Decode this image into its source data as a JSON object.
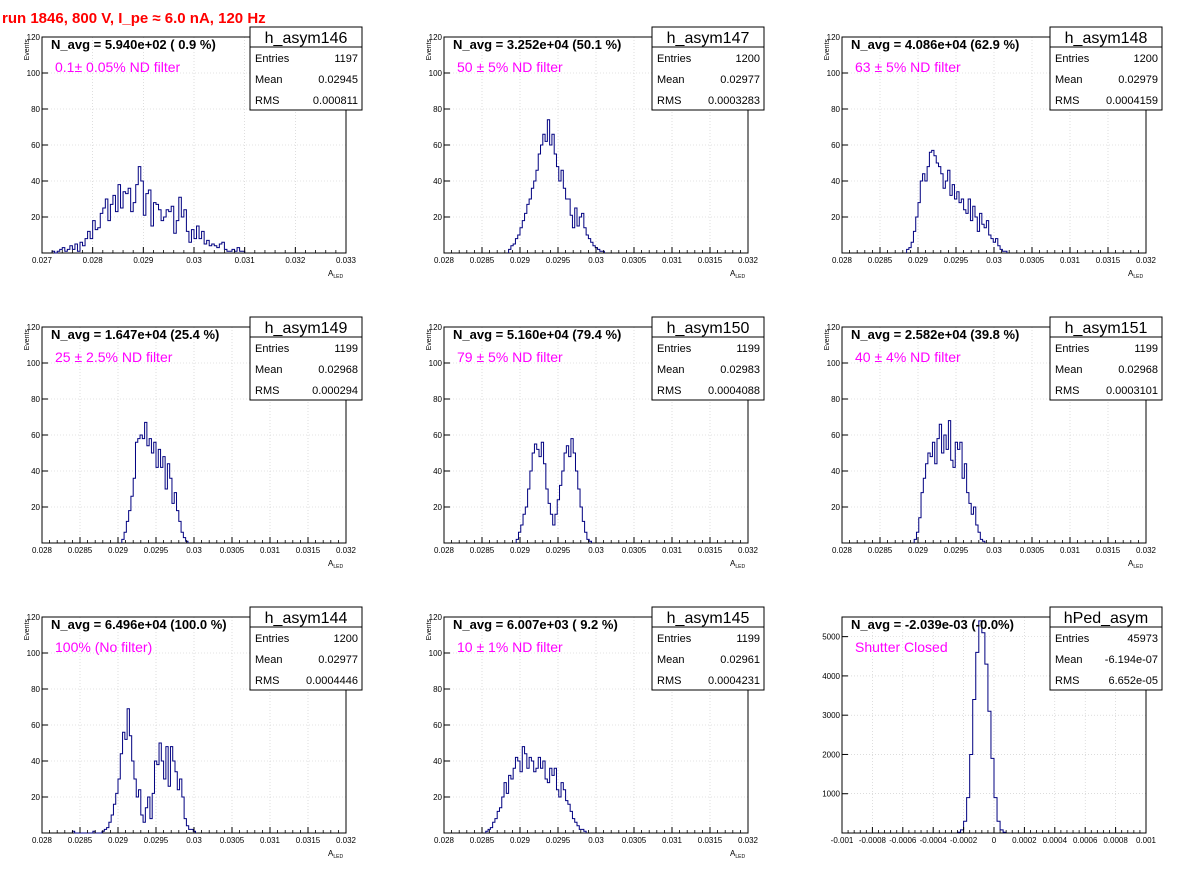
{
  "run_title": "run 1846,   800 V, I_pe ≈ 6.0 nA, 120 Hz",
  "colors": {
    "title": "#ff0000",
    "annotation": "#ff00ff",
    "histogram": "#000080",
    "grid": "#c8c8c8",
    "frame": "#000000"
  },
  "chart_data": [
    {
      "type": "histogram",
      "name": "h_asym146",
      "navg_text": "N_avg = 5.940e+02 ( 0.9 %)",
      "filter_text": "0.1± 0.05% ND filter",
      "stats": [
        [
          "Entries",
          "1197"
        ],
        [
          "Mean",
          "0.02945"
        ],
        [
          "RMS",
          "0.000811"
        ]
      ],
      "xlabel": "A",
      "xlabel_sub": "LED",
      "ylabel": "Events",
      "grid": true,
      "xlim": [
        0.027,
        0.033
      ],
      "ylim": [
        0,
        120
      ],
      "x_ticks": [
        0.027,
        0.028,
        0.029,
        0.03,
        0.031,
        0.032,
        0.033
      ],
      "x_tick_labels": [
        "0.027",
        "0.028",
        "0.029",
        "0.03",
        "0.031",
        "0.032",
        "0.033"
      ],
      "y_ticks": [
        20,
        40,
        60,
        80,
        100,
        120
      ],
      "y_tick_labels": [
        "20",
        "40",
        "60",
        "80",
        "100",
        "120"
      ],
      "bins": {
        "x0": 0.0272,
        "width": 5e-05,
        "counts": [
          1,
          0,
          1,
          2,
          3,
          1,
          2,
          4,
          2,
          5,
          1,
          6,
          4,
          8,
          12,
          8,
          18,
          13,
          14,
          22,
          25,
          30,
          18,
          27,
          32,
          23,
          38,
          25,
          34,
          33,
          36,
          23,
          28,
          38,
          48,
          40,
          21,
          33,
          35,
          15,
          28,
          27,
          24,
          18,
          20,
          24,
          23,
          26,
          11,
          18,
          31,
          20,
          24,
          12,
          6,
          13,
          8,
          15,
          8,
          12,
          5,
          7,
          4,
          5,
          4,
          3,
          5,
          6,
          2,
          1,
          1,
          2,
          1,
          3,
          1,
          1
        ]
      }
    },
    {
      "type": "histogram",
      "name": "h_asym147",
      "navg_text": "N_avg = 3.252e+04 (50.1 %)",
      "filter_text": "50 ± 5% ND filter",
      "stats": [
        [
          "Entries",
          "1200"
        ],
        [
          "Mean",
          "0.02977"
        ],
        [
          "RMS",
          "0.0003283"
        ]
      ],
      "xlabel": "A",
      "xlabel_sub": "LED",
      "ylabel": "Events",
      "grid": true,
      "xlim": [
        0.028,
        0.032
      ],
      "ylim": [
        0,
        120
      ],
      "x_ticks": [
        0.028,
        0.0285,
        0.029,
        0.0295,
        0.03,
        0.0305,
        0.031,
        0.0315,
        0.032
      ],
      "x_tick_labels": [
        "0.028",
        "0.0285",
        "0.029",
        "0.0295",
        "0.03",
        "0.0305",
        "0.031",
        "0.0315",
        "0.032"
      ],
      "y_ticks": [
        20,
        40,
        60,
        80,
        100,
        120
      ],
      "y_tick_labels": [
        "20",
        "40",
        "60",
        "80",
        "100",
        "120"
      ],
      "bins": {
        "x0": 0.02885,
        "width": 3e-05,
        "counts": [
          2,
          4,
          5,
          8,
          10,
          14,
          18,
          22,
          27,
          30,
          36,
          40,
          46,
          55,
          60,
          66,
          62,
          74,
          60,
          66,
          55,
          48,
          40,
          46,
          36,
          30,
          30,
          21,
          14,
          25,
          15,
          20,
          22,
          14,
          10,
          8,
          6,
          4,
          3,
          2,
          1,
          1
        ]
      }
    },
    {
      "type": "histogram",
      "name": "h_asym148",
      "navg_text": "N_avg = 4.086e+04 (62.9 %)",
      "filter_text": "63 ± 5% ND filter",
      "stats": [
        [
          "Entries",
          "1200"
        ],
        [
          "Mean",
          "0.02979"
        ],
        [
          "RMS",
          "0.0004159"
        ]
      ],
      "xlabel": "A",
      "xlabel_sub": "LED",
      "ylabel": "Events",
      "grid": true,
      "xlim": [
        0.028,
        0.032
      ],
      "ylim": [
        0,
        120
      ],
      "x_ticks": [
        0.028,
        0.0285,
        0.029,
        0.0295,
        0.03,
        0.0305,
        0.031,
        0.0315,
        0.032
      ],
      "x_tick_labels": [
        "0.028",
        "0.0285",
        "0.029",
        "0.0295",
        "0.03",
        "0.0305",
        "0.031",
        "0.0315",
        "0.032"
      ],
      "y_ticks": [
        20,
        40,
        60,
        80,
        100,
        120
      ],
      "y_tick_labels": [
        "20",
        "40",
        "60",
        "80",
        "100",
        "120"
      ],
      "bins": {
        "x0": 0.02885,
        "width": 3e-05,
        "counts": [
          2,
          3,
          6,
          12,
          20,
          28,
          40,
          44,
          40,
          48,
          56,
          57,
          54,
          50,
          48,
          44,
          36,
          40,
          46,
          32,
          38,
          30,
          34,
          28,
          30,
          24,
          22,
          30,
          18,
          26,
          20,
          12,
          22,
          16,
          14,
          18,
          10,
          8,
          6,
          8,
          4,
          2,
          1,
          1
        ]
      }
    },
    {
      "type": "histogram",
      "name": "h_asym149",
      "navg_text": "N_avg = 1.647e+04 (25.4 %)",
      "filter_text": "25 ± 2.5% ND filter",
      "stats": [
        [
          "Entries",
          "1199"
        ],
        [
          "Mean",
          "0.02968"
        ],
        [
          "RMS",
          "0.000294"
        ]
      ],
      "xlabel": "A",
      "xlabel_sub": "LED",
      "ylabel": "Events",
      "grid": true,
      "xlim": [
        0.028,
        0.032
      ],
      "ylim": [
        0,
        120
      ],
      "x_ticks": [
        0.028,
        0.0285,
        0.029,
        0.0295,
        0.03,
        0.0305,
        0.031,
        0.0315,
        0.032
      ],
      "x_tick_labels": [
        "0.028",
        "0.0285",
        "0.029",
        "0.0295",
        "0.03",
        "0.0305",
        "0.031",
        "0.0315",
        "0.032"
      ],
      "y_ticks": [
        20,
        40,
        60,
        80,
        100,
        120
      ],
      "y_tick_labels": [
        "20",
        "40",
        "60",
        "80",
        "100",
        "120"
      ],
      "bins": {
        "x0": 0.02905,
        "width": 3e-05,
        "counts": [
          2,
          6,
          12,
          18,
          26,
          36,
          56,
          58,
          60,
          58,
          67,
          54,
          58,
          50,
          56,
          42,
          52,
          42,
          48,
          30,
          44,
          36,
          22,
          28,
          18,
          12,
          6,
          3,
          1
        ]
      }
    },
    {
      "type": "histogram",
      "name": "h_asym150",
      "navg_text": "N_avg = 5.160e+04 (79.4 %)",
      "filter_text": "79 ± 5% ND filter",
      "stats": [
        [
          "Entries",
          "1199"
        ],
        [
          "Mean",
          "0.02983"
        ],
        [
          "RMS",
          "0.0004088"
        ]
      ],
      "xlabel": "A",
      "xlabel_sub": "LED",
      "ylabel": "Events",
      "grid": true,
      "xlim": [
        0.028,
        0.032
      ],
      "ylim": [
        0,
        120
      ],
      "x_ticks": [
        0.028,
        0.0285,
        0.029,
        0.0295,
        0.03,
        0.0305,
        0.031,
        0.0315,
        0.032
      ],
      "x_tick_labels": [
        "0.028",
        "0.0285",
        "0.029",
        "0.0295",
        "0.03",
        "0.0305",
        "0.031",
        "0.0315",
        "0.032"
      ],
      "y_ticks": [
        20,
        40,
        60,
        80,
        100,
        120
      ],
      "y_tick_labels": [
        "20",
        "40",
        "60",
        "80",
        "100",
        "120"
      ],
      "bins": {
        "x0": 0.02895,
        "width": 3e-05,
        "counts": [
          2,
          6,
          10,
          16,
          20,
          30,
          40,
          50,
          55,
          52,
          48,
          56,
          44,
          30,
          22,
          16,
          10,
          16,
          24,
          32,
          40,
          50,
          54,
          48,
          58,
          50,
          40,
          30,
          20,
          12,
          6,
          2,
          1
        ]
      }
    },
    {
      "type": "histogram",
      "name": "h_asym151",
      "navg_text": "N_avg = 2.582e+04 (39.8 %)",
      "filter_text": "40 ± 4% ND filter",
      "stats": [
        [
          "Entries",
          "1199"
        ],
        [
          "Mean",
          "0.02968"
        ],
        [
          "RMS",
          "0.0003101"
        ]
      ],
      "xlabel": "A",
      "xlabel_sub": "LED",
      "ylabel": "Events",
      "grid": true,
      "xlim": [
        0.028,
        0.032
      ],
      "ylim": [
        0,
        120
      ],
      "x_ticks": [
        0.028,
        0.0285,
        0.029,
        0.0295,
        0.03,
        0.0305,
        0.031,
        0.0315,
        0.032
      ],
      "x_tick_labels": [
        "0.028",
        "0.0285",
        "0.029",
        "0.0295",
        "0.03",
        "0.0305",
        "0.031",
        "0.0315",
        "0.032"
      ],
      "y_ticks": [
        20,
        40,
        60,
        80,
        100,
        120
      ],
      "y_tick_labels": [
        "20",
        "40",
        "60",
        "80",
        "100",
        "120"
      ],
      "bins": {
        "x0": 0.02895,
        "width": 3e-05,
        "counts": [
          2,
          6,
          14,
          28,
          36,
          44,
          50,
          48,
          56,
          44,
          58,
          66,
          50,
          60,
          52,
          68,
          46,
          42,
          56,
          52,
          56,
          36,
          44,
          28,
          22,
          16,
          20,
          10,
          6,
          2,
          1
        ]
      }
    },
    {
      "type": "histogram",
      "name": "h_asym144",
      "navg_text": "N_avg = 6.496e+04 (100.0 %)",
      "filter_text": "100% (No filter)",
      "stats": [
        [
          "Entries",
          "1200"
        ],
        [
          "Mean",
          "0.02977"
        ],
        [
          "RMS",
          "0.0004446"
        ]
      ],
      "xlabel": "A",
      "xlabel_sub": "LED",
      "ylabel": "Events",
      "grid": true,
      "xlim": [
        0.028,
        0.032
      ],
      "ylim": [
        0,
        120
      ],
      "x_ticks": [
        0.028,
        0.0285,
        0.029,
        0.0295,
        0.03,
        0.0305,
        0.031,
        0.0315,
        0.032
      ],
      "x_tick_labels": [
        "0.028",
        "0.0285",
        "0.029",
        "0.0295",
        "0.03",
        "0.0305",
        "0.031",
        "0.0315",
        "0.032"
      ],
      "y_ticks": [
        20,
        40,
        60,
        80,
        100,
        120
      ],
      "y_tick_labels": [
        "20",
        "40",
        "60",
        "80",
        "100",
        "120"
      ],
      "bins": {
        "x0": 0.0284,
        "width": 3e-05,
        "counts": [
          1,
          0,
          0,
          0,
          0,
          0,
          0,
          0,
          0,
          1,
          0,
          0,
          0,
          1,
          2,
          3,
          6,
          10,
          16,
          22,
          30,
          44,
          56,
          52,
          69,
          54,
          40,
          30,
          20,
          24,
          10,
          6,
          14,
          20,
          8,
          22,
          40,
          38,
          50,
          40,
          30,
          48,
          26,
          48,
          40,
          34,
          24,
          30,
          20,
          8,
          4,
          2,
          2,
          1
        ]
      }
    },
    {
      "type": "histogram",
      "name": "h_asym145",
      "navg_text": "N_avg = 6.007e+03 ( 9.2 %)",
      "filter_text": "10 ± 1% ND filter",
      "stats": [
        [
          "Entries",
          "1199"
        ],
        [
          "Mean",
          "0.02961"
        ],
        [
          "RMS",
          "0.0004231"
        ]
      ],
      "xlabel": "A",
      "xlabel_sub": "LED",
      "ylabel": "Events",
      "grid": true,
      "xlim": [
        0.028,
        0.032
      ],
      "ylim": [
        0,
        120
      ],
      "x_ticks": [
        0.028,
        0.0285,
        0.029,
        0.0295,
        0.03,
        0.0305,
        0.031,
        0.0315,
        0.032
      ],
      "x_tick_labels": [
        "0.028",
        "0.0285",
        "0.029",
        "0.0295",
        "0.03",
        "0.0305",
        "0.031",
        "0.0315",
        "0.032"
      ],
      "y_ticks": [
        20,
        40,
        60,
        80,
        100,
        120
      ],
      "y_tick_labels": [
        "20",
        "40",
        "60",
        "80",
        "100",
        "120"
      ],
      "bins": {
        "x0": 0.02855,
        "width": 3e-05,
        "counts": [
          1,
          2,
          3,
          6,
          8,
          12,
          14,
          20,
          28,
          22,
          32,
          30,
          36,
          42,
          40,
          34,
          48,
          44,
          36,
          42,
          40,
          34,
          36,
          42,
          36,
          40,
          30,
          28,
          36,
          32,
          36,
          24,
          20,
          28,
          24,
          18,
          16,
          12,
          8,
          6,
          4,
          2,
          2,
          1
        ]
      }
    },
    {
      "type": "histogram",
      "name": "hPed_asym",
      "navg_text": "N_avg = -2.039e-03 (-0.0%)",
      "filter_text": "Shutter Closed",
      "stats": [
        [
          "Entries",
          "45973"
        ],
        [
          "Mean",
          "-6.194e-07"
        ],
        [
          "RMS",
          "6.652e-05"
        ]
      ],
      "xlabel": "",
      "xlabel_sub": "",
      "ylabel": "",
      "grid": true,
      "xlim": [
        -0.001,
        0.001
      ],
      "ylim": [
        0,
        5500
      ],
      "x_ticks": [
        -0.001,
        -0.0008,
        -0.0006,
        -0.0004,
        -0.0002,
        0,
        0.0002,
        0.0004,
        0.0006,
        0.0008,
        0.001
      ],
      "x_tick_labels": [
        "-0.001",
        "-0.0008",
        "-0.0006",
        "-0.0004",
        "-0.0002",
        "0",
        "0.0002",
        "0.0004",
        "0.0006",
        "0.0008",
        "0.001"
      ],
      "y_ticks": [
        1000,
        2000,
        3000,
        4000,
        5000
      ],
      "y_tick_labels": [
        "1000",
        "2000",
        "3000",
        "4000",
        "5000"
      ],
      "bins": {
        "x0": -0.00024,
        "width": 2e-05,
        "counts": [
          20,
          80,
          300,
          900,
          2000,
          3400,
          4600,
          5400,
          5100,
          4300,
          3100,
          1900,
          900,
          300,
          80,
          20
        ]
      }
    }
  ]
}
